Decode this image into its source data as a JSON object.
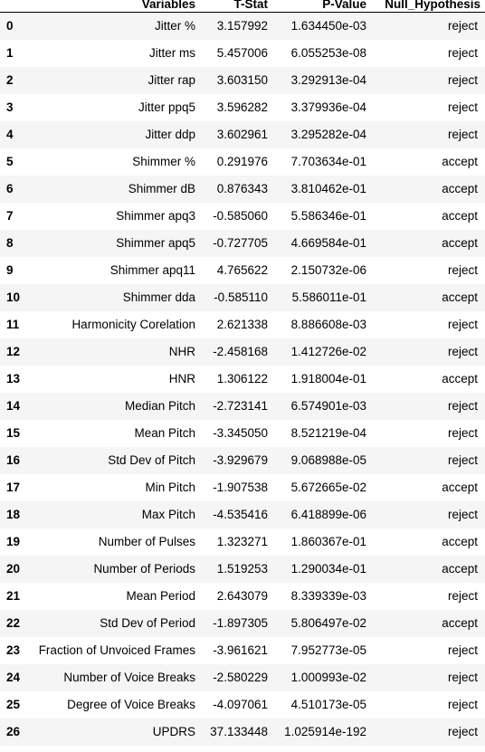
{
  "table": {
    "headers": {
      "index": "",
      "variables": "Variables",
      "t_stat": "T-Stat",
      "p_value": "P-Value",
      "null_hypothesis": "Null_Hypothesis"
    },
    "rows": [
      {
        "index": "0",
        "variable": "Jitter %",
        "t_stat": "3.157992",
        "p_value": "1.634450e-03",
        "null_hypothesis": "reject"
      },
      {
        "index": "1",
        "variable": "Jitter ms",
        "t_stat": "5.457006",
        "p_value": "6.055253e-08",
        "null_hypothesis": "reject"
      },
      {
        "index": "2",
        "variable": "Jitter rap",
        "t_stat": "3.603150",
        "p_value": "3.292913e-04",
        "null_hypothesis": "reject"
      },
      {
        "index": "3",
        "variable": "Jitter ppq5",
        "t_stat": "3.596282",
        "p_value": "3.379936e-04",
        "null_hypothesis": "reject"
      },
      {
        "index": "4",
        "variable": "Jitter ddp",
        "t_stat": "3.602961",
        "p_value": "3.295282e-04",
        "null_hypothesis": "reject"
      },
      {
        "index": "5",
        "variable": "Shimmer %",
        "t_stat": "0.291976",
        "p_value": "7.703634e-01",
        "null_hypothesis": "accept"
      },
      {
        "index": "6",
        "variable": "Shimmer dB",
        "t_stat": "0.876343",
        "p_value": "3.810462e-01",
        "null_hypothesis": "accept"
      },
      {
        "index": "7",
        "variable": "Shimmer apq3",
        "t_stat": "-0.585060",
        "p_value": "5.586346e-01",
        "null_hypothesis": "accept"
      },
      {
        "index": "8",
        "variable": "Shimmer apq5",
        "t_stat": "-0.727705",
        "p_value": "4.669584e-01",
        "null_hypothesis": "accept"
      },
      {
        "index": "9",
        "variable": "Shimmer apq11",
        "t_stat": "4.765622",
        "p_value": "2.150732e-06",
        "null_hypothesis": "reject"
      },
      {
        "index": "10",
        "variable": "Shimmer dda",
        "t_stat": "-0.585110",
        "p_value": "5.586011e-01",
        "null_hypothesis": "accept"
      },
      {
        "index": "11",
        "variable": "Harmonicity Corelation",
        "t_stat": "2.621338",
        "p_value": "8.886608e-03",
        "null_hypothesis": "reject"
      },
      {
        "index": "12",
        "variable": "NHR",
        "t_stat": "-2.458168",
        "p_value": "1.412726e-02",
        "null_hypothesis": "reject"
      },
      {
        "index": "13",
        "variable": "HNR",
        "t_stat": "1.306122",
        "p_value": "1.918004e-01",
        "null_hypothesis": "accept"
      },
      {
        "index": "14",
        "variable": "Median Pitch",
        "t_stat": "-2.723141",
        "p_value": "6.574901e-03",
        "null_hypothesis": "reject"
      },
      {
        "index": "15",
        "variable": "Mean Pitch",
        "t_stat": "-3.345050",
        "p_value": "8.521219e-04",
        "null_hypothesis": "reject"
      },
      {
        "index": "16",
        "variable": "Std Dev of Pitch",
        "t_stat": "-3.929679",
        "p_value": "9.068988e-05",
        "null_hypothesis": "reject"
      },
      {
        "index": "17",
        "variable": "Min Pitch",
        "t_stat": "-1.907538",
        "p_value": "5.672665e-02",
        "null_hypothesis": "accept"
      },
      {
        "index": "18",
        "variable": "Max Pitch",
        "t_stat": "-4.535416",
        "p_value": "6.418899e-06",
        "null_hypothesis": "reject"
      },
      {
        "index": "19",
        "variable": "Number of Pulses",
        "t_stat": "1.323271",
        "p_value": "1.860367e-01",
        "null_hypothesis": "accept"
      },
      {
        "index": "20",
        "variable": "Number of Periods",
        "t_stat": "1.519253",
        "p_value": "1.290034e-01",
        "null_hypothesis": "accept"
      },
      {
        "index": "21",
        "variable": "Mean Period",
        "t_stat": "2.643079",
        "p_value": "8.339339e-03",
        "null_hypothesis": "reject"
      },
      {
        "index": "22",
        "variable": "Std Dev of Period",
        "t_stat": "-1.897305",
        "p_value": "5.806497e-02",
        "null_hypothesis": "accept"
      },
      {
        "index": "23",
        "variable": "Fraction of Unvoiced Frames",
        "t_stat": "-3.961621",
        "p_value": "7.952773e-05",
        "null_hypothesis": "reject"
      },
      {
        "index": "24",
        "variable": "Number of Voice Breaks",
        "t_stat": "-2.580229",
        "p_value": "1.000993e-02",
        "null_hypothesis": "reject"
      },
      {
        "index": "25",
        "variable": "Degree of Voice Breaks",
        "t_stat": "-4.097061",
        "p_value": "4.510173e-05",
        "null_hypothesis": "reject"
      },
      {
        "index": "26",
        "variable": "UPDRS",
        "t_stat": "37.133448",
        "p_value": "1.025914e-192",
        "null_hypothesis": "reject"
      }
    ]
  }
}
